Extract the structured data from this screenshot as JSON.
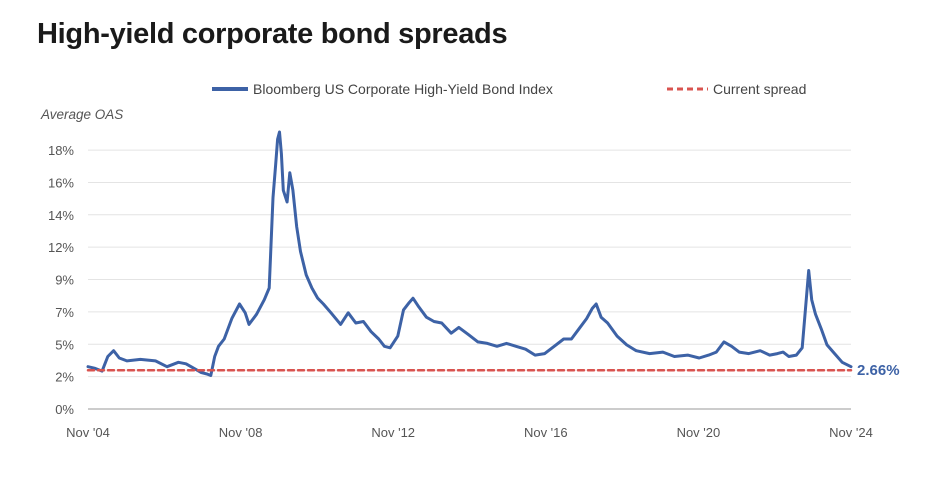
{
  "chart_data": {
    "type": "line",
    "title": "High-yield corporate bond spreads",
    "ylabel": "Average OAS",
    "xlabel": "",
    "y_ticks": [
      "0%",
      "2%",
      "5%",
      "7%",
      "9%",
      "12%",
      "14%",
      "16%",
      "18%"
    ],
    "y_tick_values": [
      0,
      2.22,
      4.44,
      6.66,
      8.88,
      11.1,
      13.32,
      15.54,
      17.76
    ],
    "ylim": [
      0,
      19
    ],
    "x_ticks": [
      "Nov '04",
      "Nov '08",
      "Nov '12",
      "Nov '16",
      "Nov '20",
      "Nov '24"
    ],
    "x_tick_values": [
      2004.83,
      2008.83,
      2012.83,
      2016.83,
      2020.83,
      2024.83
    ],
    "xlim": [
      2004.83,
      2024.83
    ],
    "grid": true,
    "legend_position": "top",
    "series": [
      {
        "name": "Bloomberg US Corporate High-Yield Bond Index",
        "color": "#3d62a6",
        "style": "solid",
        "points": [
          [
            2004.83,
            2.9
          ],
          [
            2005.0,
            2.8
          ],
          [
            2005.2,
            2.6
          ],
          [
            2005.35,
            3.6
          ],
          [
            2005.5,
            4.0
          ],
          [
            2005.65,
            3.5
          ],
          [
            2005.85,
            3.3
          ],
          [
            2006.2,
            3.4
          ],
          [
            2006.6,
            3.3
          ],
          [
            2006.9,
            2.9
          ],
          [
            2007.2,
            3.2
          ],
          [
            2007.4,
            3.1
          ],
          [
            2007.6,
            2.8
          ],
          [
            2007.8,
            2.5
          ],
          [
            2007.95,
            2.4
          ],
          [
            2008.05,
            2.3
          ],
          [
            2008.15,
            3.6
          ],
          [
            2008.25,
            4.3
          ],
          [
            2008.4,
            4.8
          ],
          [
            2008.6,
            6.2
          ],
          [
            2008.8,
            7.2
          ],
          [
            2008.95,
            6.6
          ],
          [
            2009.05,
            5.8
          ],
          [
            2009.25,
            6.5
          ],
          [
            2009.45,
            7.5
          ],
          [
            2009.58,
            8.3
          ],
          [
            2009.68,
            14.5
          ],
          [
            2009.75,
            16.8
          ],
          [
            2009.8,
            18.5
          ],
          [
            2009.85,
            19.0
          ],
          [
            2009.9,
            17.5
          ],
          [
            2009.95,
            15.0
          ],
          [
            2010.05,
            14.2
          ],
          [
            2010.12,
            16.2
          ],
          [
            2010.2,
            15.0
          ],
          [
            2010.3,
            12.5
          ],
          [
            2010.4,
            10.8
          ],
          [
            2010.55,
            9.2
          ],
          [
            2010.7,
            8.3
          ],
          [
            2010.85,
            7.6
          ],
          [
            2011.0,
            7.2
          ],
          [
            2011.2,
            6.6
          ],
          [
            2011.45,
            5.8
          ],
          [
            2011.65,
            6.6
          ],
          [
            2011.85,
            5.9
          ],
          [
            2012.05,
            6.0
          ],
          [
            2012.25,
            5.3
          ],
          [
            2012.45,
            4.8
          ],
          [
            2012.6,
            4.3
          ],
          [
            2012.75,
            4.2
          ],
          [
            2012.95,
            5.0
          ],
          [
            2013.1,
            6.8
          ],
          [
            2013.25,
            7.3
          ],
          [
            2013.35,
            7.6
          ],
          [
            2013.5,
            7.0
          ],
          [
            2013.7,
            6.3
          ],
          [
            2013.9,
            6.0
          ],
          [
            2014.1,
            5.9
          ],
          [
            2014.35,
            5.2
          ],
          [
            2014.55,
            5.6
          ],
          [
            2014.8,
            5.1
          ],
          [
            2015.05,
            4.6
          ],
          [
            2015.3,
            4.5
          ],
          [
            2015.55,
            4.3
          ],
          [
            2015.8,
            4.5
          ],
          [
            2016.05,
            4.3
          ],
          [
            2016.3,
            4.1
          ],
          [
            2016.55,
            3.7
          ],
          [
            2016.8,
            3.8
          ],
          [
            2017.05,
            4.3
          ],
          [
            2017.3,
            4.8
          ],
          [
            2017.5,
            4.8
          ],
          [
            2017.7,
            5.5
          ],
          [
            2017.9,
            6.2
          ],
          [
            2018.05,
            6.9
          ],
          [
            2018.15,
            7.2
          ],
          [
            2018.28,
            6.3
          ],
          [
            2018.45,
            5.9
          ],
          [
            2018.7,
            5.0
          ],
          [
            2018.95,
            4.4
          ],
          [
            2019.2,
            4.0
          ],
          [
            2019.55,
            3.8
          ],
          [
            2019.9,
            3.9
          ],
          [
            2020.2,
            3.6
          ],
          [
            2020.55,
            3.7
          ],
          [
            2020.85,
            3.5
          ],
          [
            2021.1,
            3.7
          ],
          [
            2021.3,
            3.9
          ],
          [
            2021.5,
            4.6
          ],
          [
            2021.7,
            4.3
          ],
          [
            2021.9,
            3.9
          ],
          [
            2022.15,
            3.8
          ],
          [
            2022.45,
            4.0
          ],
          [
            2022.7,
            3.7
          ],
          [
            2022.9,
            3.8
          ],
          [
            2023.05,
            3.9
          ],
          [
            2023.2,
            3.6
          ],
          [
            2023.4,
            3.7
          ],
          [
            2023.55,
            4.2
          ],
          [
            2023.72,
            9.5
          ],
          [
            2023.8,
            7.5
          ],
          [
            2023.9,
            6.5
          ],
          [
            2024.05,
            5.5
          ],
          [
            2024.2,
            4.4
          ],
          [
            2024.4,
            3.8
          ],
          [
            2024.6,
            3.2
          ],
          [
            2024.83,
            2.9
          ]
        ]
      },
      {
        "name": "Current spread",
        "color": "#d9534f",
        "style": "dashed",
        "points": [
          [
            2004.83,
            2.66
          ],
          [
            2024.83,
            2.66
          ]
        ]
      }
    ],
    "annotations": [
      {
        "text": "2.66%",
        "x": 2024.83,
        "y": 2.66
      }
    ]
  }
}
